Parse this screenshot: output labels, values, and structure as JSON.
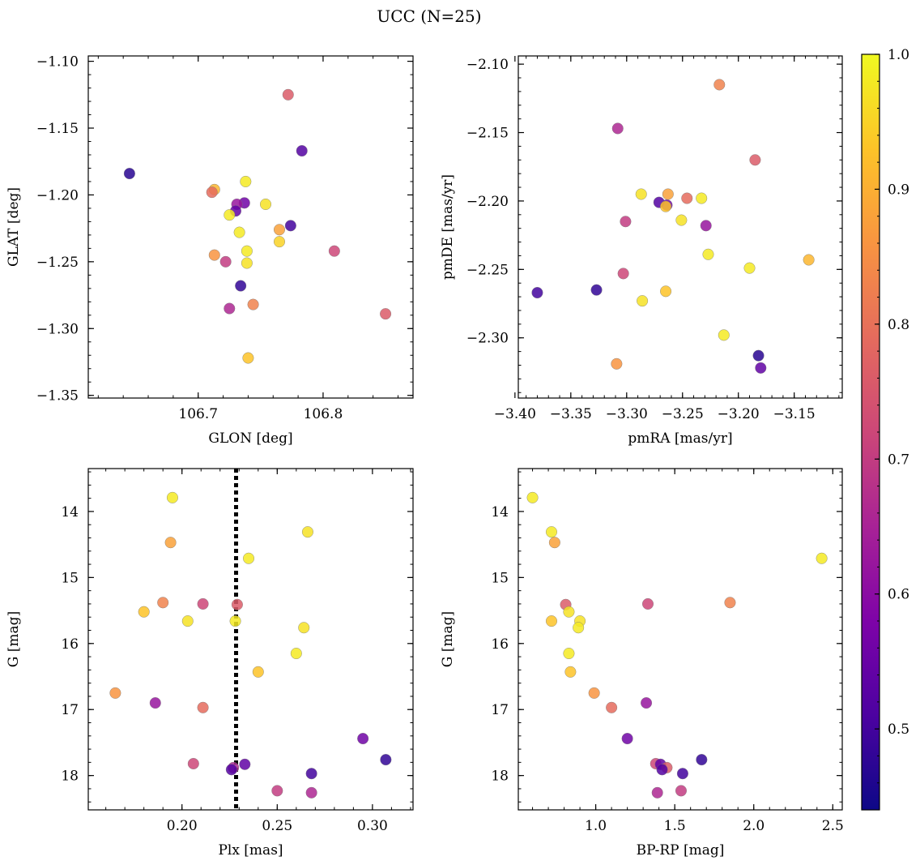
{
  "title": "UCC (N=25)",
  "colorbar": {
    "colormap": "plasma",
    "vmin": 0.44,
    "vmax": 1.0,
    "ticks": [
      0.5,
      0.6,
      0.7,
      0.8,
      0.9,
      1.0
    ],
    "tick_labels": [
      "0.5",
      "0.6",
      "0.7",
      "0.8",
      "0.9",
      "1.0"
    ]
  },
  "chart_data": [
    {
      "type": "scatter",
      "xlabel": "GLON [deg]",
      "ylabel": "GLAT [deg]",
      "xlim": [
        106.612,
        106.872
      ],
      "ylim": [
        -1.352,
        -1.096
      ],
      "y_inverted": false,
      "xticks": [
        106.7,
        106.8
      ],
      "xtick_labels": [
        "106.7",
        "106.8"
      ],
      "yticks": [
        -1.35,
        -1.3,
        -1.25,
        -1.2,
        -1.15,
        -1.1
      ],
      "ytick_labels": [
        "−1.35",
        "−1.30",
        "−1.25",
        "−1.20",
        "−1.15",
        "−1.10"
      ],
      "x": [
        106.645,
        106.737,
        106.713,
        106.772,
        106.754,
        106.738,
        106.731,
        106.73,
        106.725,
        106.783,
        106.774,
        106.733,
        106.711,
        106.765,
        106.739,
        106.713,
        106.765,
        106.722,
        106.739,
        106.809,
        106.85,
        106.734,
        106.744,
        106.725,
        106.74
      ],
      "y": [
        -1.184,
        -1.206,
        -1.196,
        -1.125,
        -1.207,
        -1.19,
        -1.207,
        -1.212,
        -1.215,
        -1.167,
        -1.223,
        -1.228,
        -1.198,
        -1.226,
        -1.242,
        -1.245,
        -1.235,
        -1.25,
        -1.251,
        -1.242,
        -1.289,
        -1.268,
        -1.282,
        -1.285,
        -1.322
      ],
      "color_values": [
        0.47,
        0.56,
        0.91,
        0.76,
        0.97,
        0.98,
        0.62,
        0.54,
        0.98,
        0.52,
        0.5,
        0.98,
        0.79,
        0.88,
        0.98,
        0.86,
        0.95,
        0.7,
        0.97,
        0.72,
        0.76,
        0.48,
        0.83,
        0.66,
        0.93
      ]
    },
    {
      "type": "scatter",
      "xlabel": "pmRA [mas/yr]",
      "ylabel": "pmDE [mas/yr]",
      "xlim": [
        -3.397,
        -3.107
      ],
      "ylim": [
        -2.344,
        -2.094
      ],
      "y_inverted": false,
      "xticks": [
        -3.4,
        -3.35,
        -3.3,
        -3.25,
        -3.2,
        -3.15
      ],
      "xtick_labels": [
        "−3.40",
        "−3.35",
        "−3.30",
        "−3.25",
        "−3.20",
        "−3.15"
      ],
      "yticks": [
        -2.3,
        -2.25,
        -2.2,
        -2.15,
        -2.1
      ],
      "ytick_labels": [
        "−2.30",
        "−2.25",
        "−2.20",
        "−2.15",
        "−2.10"
      ],
      "x": [
        -3.217,
        -3.308,
        -3.185,
        -3.287,
        -3.271,
        -3.264,
        -3.263,
        -3.265,
        -3.246,
        -3.233,
        -3.301,
        -3.251,
        -3.229,
        -3.227,
        -3.19,
        -3.137,
        -3.38,
        -3.327,
        -3.303,
        -3.265,
        -3.286,
        -3.213,
        -3.182,
        -3.18,
        -3.309
      ],
      "y": [
        -2.115,
        -2.147,
        -2.17,
        -2.195,
        -2.201,
        -2.203,
        -2.195,
        -2.204,
        -2.198,
        -2.198,
        -2.215,
        -2.214,
        -2.218,
        -2.239,
        -2.249,
        -2.243,
        -2.267,
        -2.265,
        -2.253,
        -2.266,
        -2.273,
        -2.298,
        -2.313,
        -2.322,
        -2.319
      ],
      "color_values": [
        0.83,
        0.66,
        0.76,
        0.97,
        0.52,
        0.56,
        0.88,
        0.93,
        0.79,
        0.98,
        0.7,
        0.97,
        0.62,
        0.98,
        0.98,
        0.91,
        0.5,
        0.48,
        0.72,
        0.93,
        0.97,
        0.98,
        0.47,
        0.54,
        0.86
      ]
    },
    {
      "type": "scatter",
      "xlabel": "Plx [mas]",
      "ylabel": "G [mag]",
      "xlim": [
        0.1508,
        0.3213
      ],
      "ylim": [
        13.35,
        18.52
      ],
      "y_inverted": true,
      "xticks": [
        0.2,
        0.25,
        0.3
      ],
      "xtick_labels": [
        "0.20",
        "0.25",
        "0.30"
      ],
      "yticks": [
        14,
        15,
        16,
        17,
        18
      ],
      "ytick_labels": [
        "14",
        "15",
        "16",
        "17",
        "18"
      ],
      "vline": {
        "x": 0.2284,
        "style": "dotted",
        "color": "#000000"
      },
      "x": [
        0.195,
        0.266,
        0.194,
        0.235,
        0.18,
        0.19,
        0.211,
        0.229,
        0.203,
        0.228,
        0.264,
        0.26,
        0.24,
        0.165,
        0.186,
        0.211,
        0.295,
        0.307,
        0.206,
        0.233,
        0.227,
        0.268,
        0.25,
        0.268,
        0.226
      ],
      "y": [
        13.79,
        14.31,
        14.47,
        14.71,
        15.52,
        15.38,
        15.4,
        15.41,
        15.66,
        15.66,
        15.76,
        16.15,
        16.43,
        16.75,
        16.9,
        16.97,
        17.44,
        17.76,
        17.82,
        17.83,
        17.88,
        17.97,
        18.23,
        18.26,
        17.91
      ],
      "color_values": [
        0.98,
        0.97,
        0.88,
        0.98,
        0.93,
        0.83,
        0.72,
        0.76,
        0.97,
        0.98,
        0.97,
        0.98,
        0.93,
        0.86,
        0.62,
        0.79,
        0.56,
        0.48,
        0.72,
        0.54,
        0.66,
        0.5,
        0.7,
        0.66,
        0.52
      ]
    },
    {
      "type": "scatter",
      "xlabel": "BP-RP [mag]",
      "ylabel": "G [mag]",
      "xlim": [
        0.51,
        2.56
      ],
      "ylim": [
        13.35,
        18.52
      ],
      "y_inverted": true,
      "xticks": [
        1.0,
        1.5,
        2.0,
        2.5
      ],
      "xtick_labels": [
        "1.0",
        "1.5",
        "2.0",
        "2.5"
      ],
      "yticks": [
        14,
        15,
        16,
        17,
        18
      ],
      "ytick_labels": [
        "14",
        "15",
        "16",
        "17",
        "18"
      ],
      "x": [
        0.6,
        0.72,
        0.74,
        2.43,
        0.81,
        0.83,
        1.85,
        1.33,
        0.72,
        0.9,
        0.89,
        0.83,
        0.84,
        0.99,
        1.32,
        1.1,
        1.2,
        1.67,
        1.38,
        1.55,
        1.41,
        1.45,
        1.42,
        1.39,
        1.54
      ],
      "y": [
        13.79,
        14.31,
        14.47,
        14.71,
        15.41,
        15.52,
        15.38,
        15.4,
        15.66,
        15.66,
        15.76,
        16.15,
        16.43,
        16.75,
        16.9,
        16.97,
        17.44,
        17.76,
        17.82,
        17.97,
        17.83,
        17.88,
        17.91,
        18.26,
        18.23
      ],
      "color_values": [
        0.98,
        0.98,
        0.88,
        0.98,
        0.76,
        0.97,
        0.83,
        0.72,
        0.93,
        0.97,
        0.98,
        0.98,
        0.93,
        0.86,
        0.62,
        0.79,
        0.56,
        0.48,
        0.72,
        0.5,
        0.54,
        0.76,
        0.52,
        0.66,
        0.7
      ]
    }
  ]
}
